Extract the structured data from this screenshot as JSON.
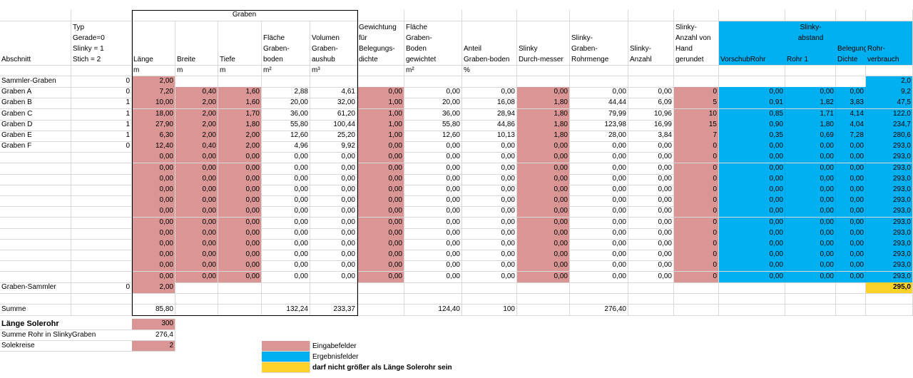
{
  "header_top": {
    "graben_group": "Graben"
  },
  "headers": {
    "abschnitt": "Abschnitt",
    "typ": [
      "Typ",
      "Gerade=0",
      "Slinky = 1",
      "Stich  = 2"
    ],
    "laenge": "Länge",
    "breite": "Breite",
    "tiefe": "Tiefe",
    "flaeche": [
      "Fläche",
      "Graben-",
      "boden"
    ],
    "volumen": [
      "Volumen",
      "Graben-",
      "aushub"
    ],
    "gewichtung": [
      "Gewichtung",
      "für",
      "Belegungs-",
      "dichte"
    ],
    "flaeche_gew": [
      "Fläche",
      "Graben-",
      "Boden",
      "gewichtet"
    ],
    "anteil": [
      "Anteil",
      "Graben-boden"
    ],
    "durchmesser": [
      "Slinky",
      "Durch-messer"
    ],
    "rohrmenge": [
      "Slinky-",
      "Graben-",
      "Rohrmenge"
    ],
    "anzahl": [
      "Slinky-",
      "Anzahl"
    ],
    "anzahl_hand": [
      "Slinky-",
      "Anzahl von",
      "Hand",
      "gerundet"
    ],
    "vorschub": "VorschubRohr",
    "abstand_top": [
      "Slinky-",
      "abstand"
    ],
    "abstand": "Rohr 1",
    "belegung": "Belegungs-Dichte",
    "rohrverbrauch": [
      "Rohr-",
      "verbrauch"
    ]
  },
  "units": {
    "laenge": "m",
    "breite": "m",
    "tiefe": "m",
    "flaeche": "m²",
    "volumen": "m³",
    "flaeche_gew": "m²",
    "anteil": "%"
  },
  "rows": [
    {
      "name": "Sammler-Graben",
      "typ": "0",
      "laenge": "2,00",
      "rohrverbrauch": "2,0"
    },
    {
      "name": "Graben A",
      "typ": "0",
      "laenge": "7,20",
      "breite": "0,40",
      "tiefe": "1,60",
      "flaeche": "2,88",
      "volumen": "4,61",
      "gewichtung": "0,00",
      "flaeche_gew": "0,00",
      "anteil": "0,00",
      "durchmesser": "0,00",
      "rohrmenge": "0,00",
      "anzahl": "0,00",
      "anzahl_hand": "0",
      "vorschub": "0,00",
      "abstand": "0,00",
      "belegung": "0,00",
      "rohrverbrauch": "9,2"
    },
    {
      "name": "Graben B",
      "typ": "1",
      "laenge": "10,00",
      "breite": "2,00",
      "tiefe": "1,60",
      "flaeche": "20,00",
      "volumen": "32,00",
      "gewichtung": "1,00",
      "flaeche_gew": "20,00",
      "anteil": "16,08",
      "durchmesser": "1,80",
      "rohrmenge": "44,44",
      "anzahl": "6,09",
      "anzahl_hand": "5",
      "vorschub": "0,91",
      "abstand": "1,82",
      "belegung": "3,83",
      "rohrverbrauch": "47,5"
    },
    {
      "name": "Graben C",
      "typ": "1",
      "laenge": "18,00",
      "breite": "2,00",
      "tiefe": "1,70",
      "flaeche": "36,00",
      "volumen": "61,20",
      "gewichtung": "1,00",
      "flaeche_gew": "36,00",
      "anteil": "28,94",
      "durchmesser": "1,80",
      "rohrmenge": "79,99",
      "anzahl": "10,96",
      "anzahl_hand": "10",
      "vorschub": "0,85",
      "abstand": "1,71",
      "belegung": "4,14",
      "rohrverbrauch": "122,0"
    },
    {
      "name": "Graben D",
      "typ": "1",
      "laenge": "27,90",
      "breite": "2,00",
      "tiefe": "1,80",
      "flaeche": "55,80",
      "volumen": "100,44",
      "gewichtung": "1,00",
      "flaeche_gew": "55,80",
      "anteil": "44,86",
      "durchmesser": "1,80",
      "rohrmenge": "123,98",
      "anzahl": "16,99",
      "anzahl_hand": "15",
      "vorschub": "0,90",
      "abstand": "1,80",
      "belegung": "4,04",
      "rohrverbrauch": "234,7"
    },
    {
      "name": "Graben E",
      "typ": "1",
      "laenge": "6,30",
      "breite": "2,00",
      "tiefe": "2,00",
      "flaeche": "12,60",
      "volumen": "25,20",
      "gewichtung": "1,00",
      "flaeche_gew": "12,60",
      "anteil": "10,13",
      "durchmesser": "1,80",
      "rohrmenge": "28,00",
      "anzahl": "3,84",
      "anzahl_hand": "7",
      "vorschub": "0,35",
      "abstand": "0,69",
      "belegung": "7,28",
      "rohrverbrauch": "280,6"
    },
    {
      "name": "Graben F",
      "typ": "0",
      "laenge": "12,40",
      "breite": "0,40",
      "tiefe": "2,00",
      "flaeche": "4,96",
      "volumen": "9,92",
      "gewichtung": "0,00",
      "flaeche_gew": "0,00",
      "anteil": "0,00",
      "durchmesser": "0,00",
      "rohrmenge": "0,00",
      "anzahl": "0,00",
      "anzahl_hand": "0",
      "vorschub": "0,00",
      "abstand": "0,00",
      "belegung": "0,00",
      "rohrverbrauch": "293,0"
    },
    {
      "name": "",
      "typ": "",
      "laenge": "0,00",
      "breite": "0,00",
      "tiefe": "0,00",
      "flaeche": "0,00",
      "volumen": "0,00",
      "gewichtung": "0,00",
      "flaeche_gew": "0,00",
      "anteil": "0,00",
      "durchmesser": "0,00",
      "rohrmenge": "0,00",
      "anzahl": "0,00",
      "anzahl_hand": "0",
      "vorschub": "0,00",
      "abstand": "0,00",
      "belegung": "0,00",
      "rohrverbrauch": "293,0"
    },
    {
      "name": "",
      "typ": "",
      "laenge": "0,00",
      "breite": "0,00",
      "tiefe": "0,00",
      "flaeche": "0,00",
      "volumen": "0,00",
      "gewichtung": "0,00",
      "flaeche_gew": "0,00",
      "anteil": "0,00",
      "durchmesser": "0,00",
      "rohrmenge": "0,00",
      "anzahl": "0,00",
      "anzahl_hand": "0",
      "vorschub": "0,00",
      "abstand": "0,00",
      "belegung": "0,00",
      "rohrverbrauch": "293,0"
    },
    {
      "name": "",
      "typ": "",
      "laenge": "0,00",
      "breite": "0,00",
      "tiefe": "0,00",
      "flaeche": "0,00",
      "volumen": "0,00",
      "gewichtung": "0,00",
      "flaeche_gew": "0,00",
      "anteil": "0,00",
      "durchmesser": "0,00",
      "rohrmenge": "0,00",
      "anzahl": "0,00",
      "anzahl_hand": "0",
      "vorschub": "0,00",
      "abstand": "0,00",
      "belegung": "0,00",
      "rohrverbrauch": "293,0"
    },
    {
      "name": "",
      "typ": "",
      "laenge": "0,00",
      "breite": "0,00",
      "tiefe": "0,00",
      "flaeche": "0,00",
      "volumen": "0,00",
      "gewichtung": "0,00",
      "flaeche_gew": "0,00",
      "anteil": "0,00",
      "durchmesser": "0,00",
      "rohrmenge": "0,00",
      "anzahl": "0,00",
      "anzahl_hand": "0",
      "vorschub": "0,00",
      "abstand": "0,00",
      "belegung": "0,00",
      "rohrverbrauch": "293,0"
    },
    {
      "name": "",
      "typ": "",
      "laenge": "0,00",
      "breite": "0,00",
      "tiefe": "0,00",
      "flaeche": "0,00",
      "volumen": "0,00",
      "gewichtung": "0,00",
      "flaeche_gew": "0,00",
      "anteil": "0,00",
      "durchmesser": "0,00",
      "rohrmenge": "0,00",
      "anzahl": "0,00",
      "anzahl_hand": "0",
      "vorschub": "0,00",
      "abstand": "0,00",
      "belegung": "0,00",
      "rohrverbrauch": "293,0"
    },
    {
      "name": "",
      "typ": "",
      "laenge": "0,00",
      "breite": "0,00",
      "tiefe": "0,00",
      "flaeche": "0,00",
      "volumen": "0,00",
      "gewichtung": "0,00",
      "flaeche_gew": "0,00",
      "anteil": "0,00",
      "durchmesser": "0,00",
      "rohrmenge": "0,00",
      "anzahl": "0,00",
      "anzahl_hand": "0",
      "vorschub": "0,00",
      "abstand": "0,00",
      "belegung": "0,00",
      "rohrverbrauch": "293,0"
    },
    {
      "name": "",
      "typ": "",
      "laenge": "0,00",
      "breite": "0,00",
      "tiefe": "0,00",
      "flaeche": "0,00",
      "volumen": "0,00",
      "gewichtung": "0,00",
      "flaeche_gew": "0,00",
      "anteil": "0,00",
      "durchmesser": "0,00",
      "rohrmenge": "0,00",
      "anzahl": "0,00",
      "anzahl_hand": "0",
      "vorschub": "0,00",
      "abstand": "0,00",
      "belegung": "0,00",
      "rohrverbrauch": "293,0"
    },
    {
      "name": "",
      "typ": "",
      "laenge": "0,00",
      "breite": "0,00",
      "tiefe": "0,00",
      "flaeche": "0,00",
      "volumen": "0,00",
      "gewichtung": "0,00",
      "flaeche_gew": "0,00",
      "anteil": "0,00",
      "durchmesser": "0,00",
      "rohrmenge": "0,00",
      "anzahl": "0,00",
      "anzahl_hand": "0",
      "vorschub": "0,00",
      "abstand": "0,00",
      "belegung": "0,00",
      "rohrverbrauch": "293,0"
    },
    {
      "name": "",
      "typ": "",
      "laenge": "0,00",
      "breite": "0,00",
      "tiefe": "0,00",
      "flaeche": "0,00",
      "volumen": "0,00",
      "gewichtung": "0,00",
      "flaeche_gew": "0,00",
      "anteil": "0,00",
      "durchmesser": "0,00",
      "rohrmenge": "0,00",
      "anzahl": "0,00",
      "anzahl_hand": "0",
      "vorschub": "0,00",
      "abstand": "0,00",
      "belegung": "0,00",
      "rohrverbrauch": "293,0"
    },
    {
      "name": "",
      "typ": "",
      "laenge": "0,00",
      "breite": "0,00",
      "tiefe": "0,00",
      "flaeche": "0,00",
      "volumen": "0,00",
      "gewichtung": "0,00",
      "flaeche_gew": "0,00",
      "anteil": "0,00",
      "durchmesser": "0,00",
      "rohrmenge": "0,00",
      "anzahl": "0,00",
      "anzahl_hand": "0",
      "vorschub": "0,00",
      "abstand": "0,00",
      "belegung": "0,00",
      "rohrverbrauch": "293,0"
    },
    {
      "name": "",
      "typ": "",
      "laenge": "0,00",
      "breite": "0,00",
      "tiefe": "0,00",
      "flaeche": "0,00",
      "volumen": "0,00",
      "gewichtung": "0,00",
      "flaeche_gew": "0,00",
      "anteil": "0,00",
      "durchmesser": "0,00",
      "rohrmenge": "0,00",
      "anzahl": "0,00",
      "anzahl_hand": "0",
      "vorschub": "0,00",
      "abstand": "0,00",
      "belegung": "0,00",
      "rohrverbrauch": "293,0"
    },
    {
      "name": "",
      "typ": "",
      "laenge": "0,00",
      "breite": "0,00",
      "tiefe": "0,00",
      "flaeche": "0,00",
      "volumen": "0,00",
      "gewichtung": "0,00",
      "flaeche_gew": "0,00",
      "anteil": "0,00",
      "durchmesser": "0,00",
      "rohrmenge": "0,00",
      "anzahl": "0,00",
      "anzahl_hand": "0",
      "vorschub": "0,00",
      "abstand": "0,00",
      "belegung": "0,00",
      "rohrverbrauch": "293,0"
    },
    {
      "name": "Graben-Sammler",
      "typ": "0",
      "laenge": "2,00",
      "rohrverbrauch": "295,0"
    }
  ],
  "summe": {
    "label": "Summe",
    "laenge": "85,80",
    "flaeche": "132,24",
    "volumen": "233,37",
    "flaeche_gew": "124,40",
    "anteil": "100",
    "rohrmenge": "276,40"
  },
  "bottom": {
    "laenge_solerohr_label": "Länge Solerohr",
    "laenge_solerohr_value": "300",
    "summe_rohr_label": "Summe Rohr in SlinkyGraben",
    "summe_rohr_value": "276,4",
    "solekreise_label": "Solekreise",
    "solekreise_value": "2"
  },
  "legend": {
    "input": "Eingabefelder",
    "output": "Ergebnisfelder",
    "warning": "darf nicht größer als Länge Solerohr sein"
  },
  "colors": {
    "input": "#da9694",
    "output": "#00b0f0",
    "warning": "#ffd22a",
    "gridline": "#d9d9d9"
  }
}
